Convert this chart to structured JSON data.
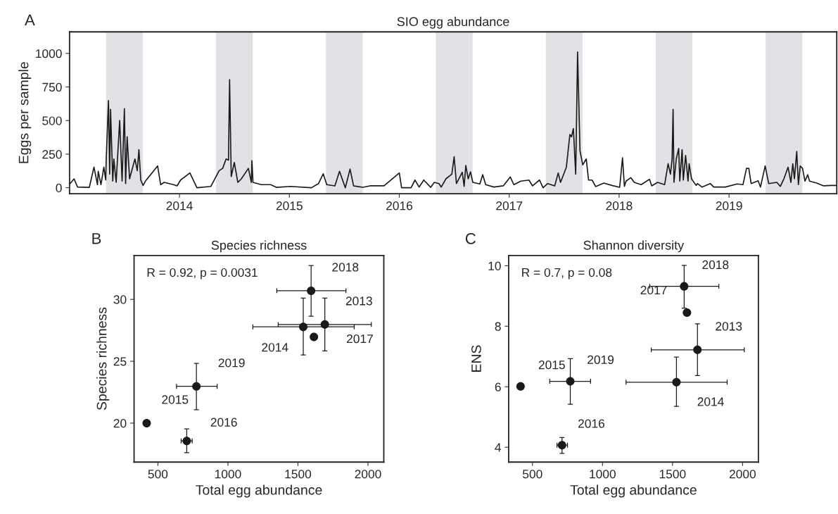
{
  "chart_data": [
    {
      "type": "line",
      "title": "SIO egg abundance",
      "ylabel": "Eggs per sample",
      "annotations": [
        "A"
      ],
      "series": [
        {
          "color": "#1a1a1a",
          "x": [
            2013.005,
            2013.041,
            2013.073,
            2013.18,
            2013.222,
            2013.254,
            2013.261,
            2013.286,
            2013.312,
            2013.329,
            2013.333,
            2013.354,
            2013.365,
            2013.373,
            2013.393,
            2013.403,
            2013.424,
            2013.456,
            2013.478,
            2013.499,
            2013.51,
            2013.524,
            2013.546,
            2013.595,
            2013.616,
            2013.631,
            2013.648,
            2013.669,
            2013.69,
            2013.801,
            2013.829,
            2013.861,
            2013.946,
            2013.978,
            2014.01,
            2014.095,
            2014.159,
            2014.286,
            2014.361,
            2014.393,
            2014.424,
            2014.446,
            2014.456,
            2014.471,
            2014.499,
            2014.531,
            2014.563,
            2014.627,
            2014.654,
            2014.659,
            2014.669,
            2014.744,
            2014.829,
            2014.882,
            2015.01,
            2015.201,
            2015.265,
            2015.308,
            2015.34,
            2015.414,
            2015.456,
            2015.509,
            2015.552,
            2015.584,
            2015.669,
            2015.733,
            2015.861,
            2016.0,
            2016.021,
            2016.107,
            2016.143,
            2016.18,
            2016.223,
            2016.286,
            2016.318,
            2016.361,
            2016.382,
            2016.424,
            2016.478,
            2016.499,
            2016.52,
            2016.573,
            2016.59,
            2016.605,
            2016.627,
            2016.648,
            2016.669,
            2016.733,
            2016.759,
            2016.786,
            2016.861,
            2016.946,
            2017.01,
            2017.042,
            2017.106,
            2017.18,
            2017.212,
            2017.276,
            2017.308,
            2017.35,
            2017.414,
            2017.446,
            2017.467,
            2017.52,
            2017.552,
            2017.567,
            2017.584,
            2017.605,
            2017.622,
            2017.644,
            2017.669,
            2017.701,
            2017.722,
            2017.754,
            2017.786,
            2017.861,
            2017.935,
            2018.005,
            2018.031,
            2018.048,
            2018.063,
            2018.106,
            2018.138,
            2018.201,
            2018.276,
            2018.297,
            2018.35,
            2018.414,
            2018.446,
            2018.467,
            2018.482,
            2018.491,
            2018.499,
            2018.52,
            2018.542,
            2018.552,
            2018.573,
            2018.584,
            2018.605,
            2018.627,
            2018.637,
            2018.659,
            2018.701,
            2018.712,
            2018.754,
            2018.829,
            2018.861,
            2018.967,
            2019.074,
            2019.127,
            2019.159,
            2019.18,
            2019.201,
            2019.265,
            2019.286,
            2019.329,
            2019.361,
            2019.435,
            2019.467,
            2019.499,
            2019.537,
            2019.563,
            2019.58,
            2019.595,
            2019.616,
            2019.631,
            2019.648,
            2019.669,
            2019.691,
            2019.716,
            2019.733,
            2019.797,
            2019.861,
            2019.925,
            2019.974
          ],
          "values": [
            31,
            66,
            5,
            3,
            153,
            23,
            122,
            23,
            153,
            57,
            197,
            649,
            101,
            583,
            49,
            214,
            40,
            501,
            49,
            588,
            31,
            379,
            66,
            214,
            127,
            283,
            57,
            17,
            49,
            162,
            23,
            40,
            23,
            14,
            57,
            110,
            0,
            10,
            127,
            144,
            214,
            205,
            805,
            83,
            188,
            40,
            66,
            144,
            40,
            202,
            40,
            23,
            23,
            3,
            10,
            0,
            31,
            104,
            23,
            14,
            122,
            0,
            139,
            14,
            3,
            14,
            14,
            110,
            0,
            0,
            57,
            5,
            57,
            3,
            40,
            31,
            5,
            66,
            101,
            231,
            31,
            115,
            10,
            165,
            66,
            118,
            40,
            28,
            97,
            23,
            5,
            14,
            80,
            23,
            49,
            57,
            14,
            57,
            0,
            31,
            14,
            110,
            40,
            153,
            396,
            379,
            440,
            101,
            1010,
            275,
            170,
            214,
            57,
            57,
            9,
            35,
            17,
            3,
            223,
            10,
            49,
            75,
            40,
            23,
            63,
            14,
            40,
            23,
            179,
            101,
            214,
            583,
            40,
            214,
            292,
            49,
            283,
            57,
            240,
            49,
            179,
            66,
            17,
            31,
            5,
            31,
            5,
            5,
            28,
            23,
            144,
            144,
            31,
            52,
            5,
            162,
            31,
            40,
            10,
            66,
            153,
            40,
            179,
            66,
            270,
            23,
            162,
            144,
            49,
            97,
            49,
            35,
            14,
            17,
            17
          ]
        }
      ],
      "xlim": [
        2013.0,
        2019.98
      ],
      "ylim": [
        -45,
        1160
      ],
      "xticks": [
        2014,
        2015,
        2016,
        2017,
        2018,
        2019
      ],
      "yticks": [
        0,
        250,
        500,
        750,
        1000
      ],
      "bands": [
        {
          "axis": "x",
          "from": 2013.333,
          "to": 2013.667,
          "color": "#e1e2e5"
        },
        {
          "axis": "x",
          "from": 2014.333,
          "to": 2014.667,
          "color": "#e1e2e5"
        },
        {
          "axis": "x",
          "from": 2015.333,
          "to": 2015.667,
          "color": "#e1e2e5"
        },
        {
          "axis": "x",
          "from": 2016.333,
          "to": 2016.667,
          "color": "#e1e2e5"
        },
        {
          "axis": "x",
          "from": 2017.333,
          "to": 2017.667,
          "color": "#e1e2e5"
        },
        {
          "axis": "x",
          "from": 2018.333,
          "to": 2018.667,
          "color": "#e1e2e5"
        },
        {
          "axis": "x",
          "from": 2019.333,
          "to": 2019.667,
          "color": "#e1e2e5"
        }
      ]
    },
    {
      "type": "scatter",
      "title": "Species richness",
      "xlabel": "Total egg abundance",
      "ylabel": "Species richness",
      "annotations": [
        "B",
        "R = 0.92, p = 0.0031",
        {
          "text": "2013",
          "x": 1692,
          "y": 27.97
        },
        {
          "text": "2014",
          "x": 1538,
          "y": 27.78
        },
        {
          "text": "2015",
          "x": 420,
          "y": 20.0
        },
        {
          "text": "2016",
          "x": 706,
          "y": 18.56
        },
        {
          "text": "2017",
          "x": 1614,
          "y": 26.97
        },
        {
          "text": "2018",
          "x": 1594,
          "y": 30.7
        },
        {
          "text": "2019",
          "x": 775,
          "y": 22.97
        }
      ],
      "series": [
        {
          "color": "#1a1a1a",
          "marker": "circle",
          "x": [
            1692,
            1538,
            420,
            706,
            1614,
            1594,
            775
          ],
          "values": [
            27.97,
            27.78,
            20.0,
            18.56,
            26.97,
            30.7,
            22.97
          ],
          "errors": [
            [
              25.84,
              30.1
            ],
            [
              25.51,
              30.1
            ],
            null,
            [
              17.61,
              19.53
            ],
            null,
            [
              28.64,
              32.74
            ],
            [
              21.08,
              24.83
            ]
          ],
          "xerrors": [
            [
              1359,
              2024
            ],
            [
              1178,
              1902
            ],
            null,
            [
              666,
              745
            ],
            null,
            [
              1349,
              1843
            ],
            [
              633,
              923
            ]
          ]
        }
      ],
      "xlim": [
        330,
        2113
      ],
      "ylim": [
        16.85,
        33.55
      ],
      "xticks": [
        500,
        1000,
        1500,
        2000
      ],
      "yticks": [
        20,
        25,
        30
      ]
    },
    {
      "type": "scatter",
      "title": "Shannon diversity",
      "xlabel": "Total egg abundance",
      "ylabel": "ENS",
      "annotations": [
        "C",
        "R = 0.7, p = 0.08",
        {
          "text": "2013",
          "x": 1678,
          "y": 7.22
        },
        {
          "text": "2014",
          "x": 1528,
          "y": 6.15
        },
        {
          "text": "2015",
          "x": 415,
          "y": 6.01
        },
        {
          "text": "2016",
          "x": 711,
          "y": 4.07
        },
        {
          "text": "2017",
          "x": 1603,
          "y": 8.45
        },
        {
          "text": "2018",
          "x": 1583,
          "y": 9.32
        },
        {
          "text": "2019",
          "x": 770,
          "y": 6.18
        }
      ],
      "series": [
        {
          "color": "#1a1a1a",
          "marker": "circle",
          "x": [
            1678,
            1528,
            415,
            711,
            1603,
            1583,
            770
          ],
          "values": [
            7.22,
            6.15,
            6.01,
            4.07,
            8.45,
            9.32,
            6.18
          ],
          "errors": [
            [
              6.37,
              8.08
            ],
            [
              5.35,
              6.98
            ],
            null,
            [
              3.8,
              4.32
            ],
            null,
            [
              8.6,
              10.01
            ],
            [
              5.42,
              6.93
            ]
          ],
          "xerrors": [
            [
              1348,
              2012
            ],
            [
              1168,
              1890
            ],
            null,
            [
              675,
              750
            ],
            null,
            [
              1337,
              1831
            ],
            [
              623,
              915
            ]
          ]
        }
      ],
      "xlim": [
        330,
        2113
      ],
      "ylim": [
        3.51,
        10.34
      ],
      "xticks": [
        500,
        1000,
        1500,
        2000
      ],
      "yticks": [
        4,
        6,
        8,
        10
      ]
    }
  ]
}
